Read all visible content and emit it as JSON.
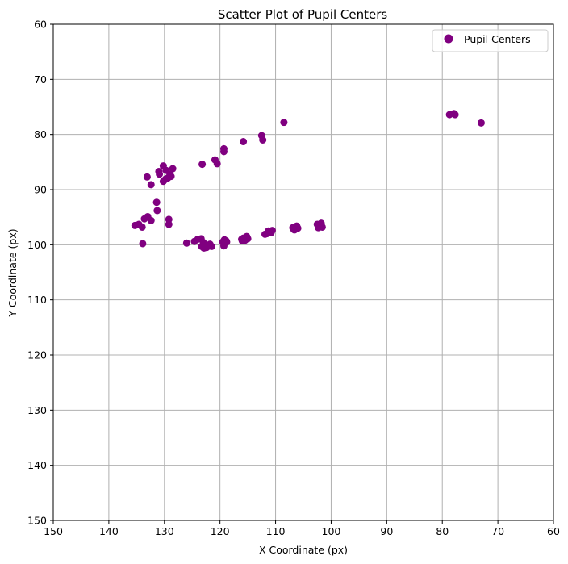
{
  "chart_data": {
    "type": "scatter",
    "title": "Scatter Plot of Pupil Centers",
    "xlabel": "X Coordinate (px)",
    "ylabel": "Y Coordinate (px)",
    "xlim": [
      150,
      60
    ],
    "ylim": [
      150,
      60
    ],
    "x_inverted": true,
    "y_inverted": true,
    "grid": true,
    "xticks": [
      150,
      140,
      130,
      120,
      110,
      100,
      90,
      80,
      70,
      60
    ],
    "yticks": [
      60,
      70,
      80,
      90,
      100,
      110,
      120,
      130,
      140,
      150
    ],
    "xtick_labels": [
      "150",
      "140",
      "130",
      "120",
      "110",
      "100",
      "90",
      "80",
      "70",
      "60"
    ],
    "ytick_labels": [
      "60",
      "70",
      "80",
      "90",
      "100",
      "110",
      "120",
      "130",
      "140",
      "150"
    ],
    "legend": {
      "position": "top-right",
      "entries": [
        "Pupil Centers"
      ]
    },
    "series": [
      {
        "name": "Pupil Centers",
        "color": "#800080",
        "points": [
          [
            108.5,
            77.8
          ],
          [
            112.5,
            80.2
          ],
          [
            112.3,
            81.0
          ],
          [
            115.8,
            81.3
          ],
          [
            119.3,
            82.6
          ],
          [
            119.3,
            83.1
          ],
          [
            120.9,
            84.6
          ],
          [
            120.5,
            85.3
          ],
          [
            123.2,
            85.4
          ],
          [
            130.2,
            85.7
          ],
          [
            128.5,
            86.2
          ],
          [
            129.7,
            86.5
          ],
          [
            131.0,
            86.7
          ],
          [
            130.9,
            87.2
          ],
          [
            129.0,
            87.2
          ],
          [
            133.1,
            87.7
          ],
          [
            128.8,
            87.6
          ],
          [
            129.4,
            87.9
          ],
          [
            129.8,
            88.1
          ],
          [
            130.2,
            88.5
          ],
          [
            132.4,
            89.1
          ],
          [
            131.4,
            92.3
          ],
          [
            131.3,
            93.8
          ],
          [
            129.2,
            95.4
          ],
          [
            133.0,
            94.9
          ],
          [
            133.6,
            95.3
          ],
          [
            132.4,
            95.6
          ],
          [
            129.2,
            96.3
          ],
          [
            135.3,
            96.5
          ],
          [
            134.6,
            96.3
          ],
          [
            134.0,
            96.8
          ],
          [
            133.9,
            99.8
          ],
          [
            126.0,
            99.7
          ],
          [
            124.6,
            99.4
          ],
          [
            124.0,
            99.0
          ],
          [
            123.4,
            98.9
          ],
          [
            123.0,
            99.6
          ],
          [
            123.3,
            100.3
          ],
          [
            122.9,
            100.6
          ],
          [
            122.4,
            100.5
          ],
          [
            122.0,
            100.2
          ],
          [
            121.8,
            99.9
          ],
          [
            121.5,
            100.3
          ],
          [
            119.3,
            100.2
          ],
          [
            119.5,
            99.5
          ],
          [
            118.9,
            99.3
          ],
          [
            119.2,
            99.1
          ],
          [
            118.8,
            99.5
          ],
          [
            116.1,
            99.0
          ],
          [
            115.8,
            98.8
          ],
          [
            115.4,
            98.7
          ],
          [
            115.0,
            98.9
          ],
          [
            115.5,
            99.2
          ],
          [
            116.0,
            99.3
          ],
          [
            115.2,
            98.5
          ],
          [
            111.6,
            98.0
          ],
          [
            111.1,
            97.6
          ],
          [
            110.8,
            97.8
          ],
          [
            111.3,
            97.5
          ],
          [
            110.6,
            97.4
          ],
          [
            111.9,
            98.1
          ],
          [
            106.8,
            97.1
          ],
          [
            106.5,
            96.8
          ],
          [
            106.2,
            96.6
          ],
          [
            106.0,
            97.0
          ],
          [
            106.6,
            97.3
          ],
          [
            106.9,
            96.9
          ],
          [
            102.5,
            96.3
          ],
          [
            102.1,
            96.6
          ],
          [
            101.8,
            96.1
          ],
          [
            101.6,
            96.8
          ],
          [
            102.3,
            96.9
          ],
          [
            101.9,
            96.5
          ],
          [
            78.7,
            76.4
          ],
          [
            77.9,
            76.2
          ],
          [
            77.7,
            76.4
          ],
          [
            73.0,
            77.9
          ]
        ]
      }
    ]
  }
}
